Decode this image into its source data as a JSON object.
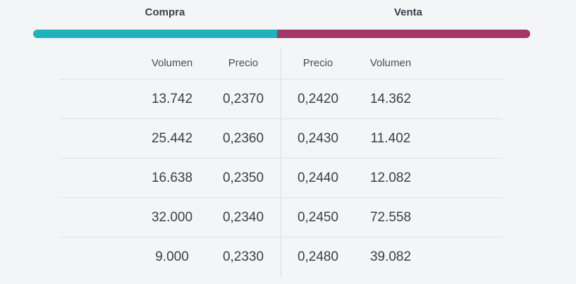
{
  "header": {
    "buy_label": "Compra",
    "sell_label": "Venta"
  },
  "depth_bar": {
    "buy_percent": 49.1,
    "sell_percent": 50.9,
    "buy_color": "#20b2ba",
    "sell_color": "#a33768"
  },
  "table": {
    "columns": {
      "buy_volume": "Volumen",
      "buy_price": "Precio",
      "sell_price": "Precio",
      "sell_volume": "Volumen"
    },
    "rows": [
      {
        "buy_volume": "13.742",
        "buy_price": "0,2370",
        "sell_price": "0,2420",
        "sell_volume": "14.362"
      },
      {
        "buy_volume": "25.442",
        "buy_price": "0,2360",
        "sell_price": "0,2430",
        "sell_volume": "11.402"
      },
      {
        "buy_volume": "16.638",
        "buy_price": "0,2350",
        "sell_price": "0,2440",
        "sell_volume": "12.082"
      },
      {
        "buy_volume": "32.000",
        "buy_price": "0,2340",
        "sell_price": "0,2450",
        "sell_volume": "72.558"
      },
      {
        "buy_volume": "9.000",
        "buy_price": "0,2330",
        "sell_price": "0,2480",
        "sell_volume": "39.082"
      }
    ]
  }
}
